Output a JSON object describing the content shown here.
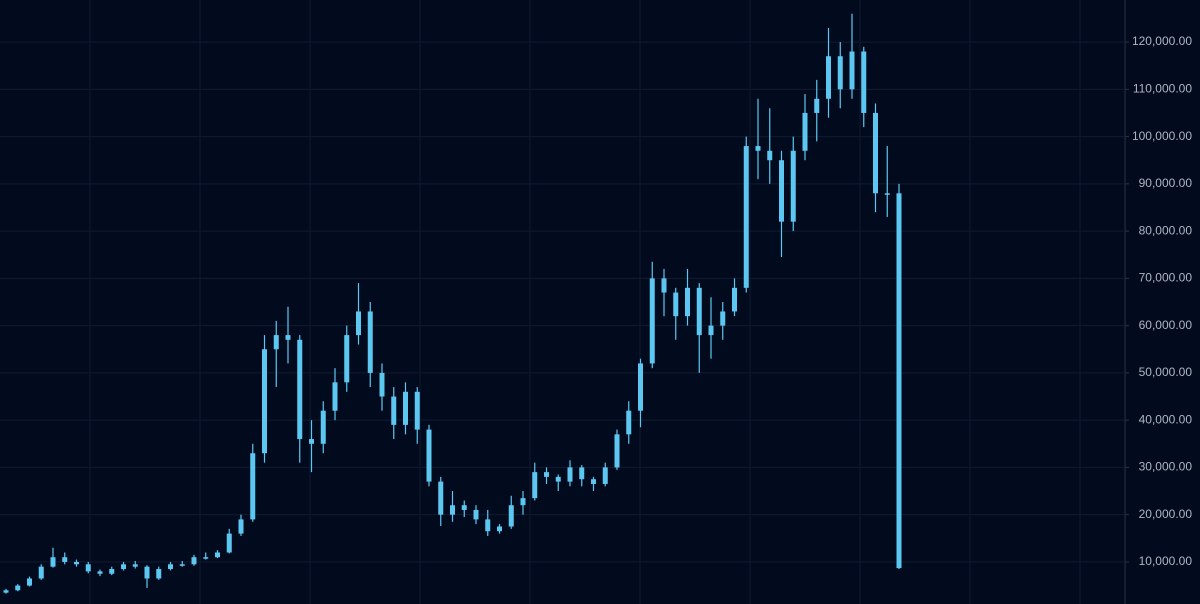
{
  "chart_data": {
    "type": "candlestick",
    "color": "#5cc8f2",
    "ylim": [
      1100,
      128900
    ],
    "yticks": [
      {
        "value": 10000,
        "label": "10,000.00"
      },
      {
        "value": 20000,
        "label": "20,000.00"
      },
      {
        "value": 30000,
        "label": "30,000.00"
      },
      {
        "value": 40000,
        "label": "40,000.00"
      },
      {
        "value": 50000,
        "label": "50,000.00"
      },
      {
        "value": 60000,
        "label": "60,000.00"
      },
      {
        "value": 70000,
        "label": "70,000.00"
      },
      {
        "value": 80000,
        "label": "80,000.00"
      },
      {
        "value": 90000,
        "label": "90,000.00"
      },
      {
        "value": 100000,
        "label": "100,000.00"
      },
      {
        "value": 110000,
        "label": "110,000.00"
      },
      {
        "value": 120000,
        "label": "120,000.00"
      }
    ],
    "grid": true,
    "open": [
      3500,
      4000,
      5000,
      6500,
      9000,
      11000,
      10000,
      9500,
      8000,
      7500,
      8500,
      9500,
      9000,
      6500,
      8500,
      9500,
      9500,
      11000,
      11000,
      12000,
      16000,
      19000,
      33000,
      55000,
      58000,
      57000,
      36000,
      35000,
      42000,
      48000,
      58000,
      63000,
      50000,
      45000,
      39000,
      46000,
      38000,
      27000,
      20000,
      22000,
      21000,
      19000,
      16500,
      17500,
      22000,
      23500,
      29000,
      28000,
      27000,
      30000,
      27500,
      26500,
      30000,
      37000,
      42000,
      52000,
      70000,
      67000,
      62000,
      68000,
      58000,
      60000,
      63000,
      68000,
      98000,
      97000,
      95000,
      82000,
      97000,
      105000,
      108000,
      117000,
      110000,
      118000,
      105000,
      88000,
      88000
    ],
    "high": [
      4300,
      5300,
      6900,
      9500,
      13000,
      12000,
      10500,
      10000,
      8400,
      9000,
      10000,
      10200,
      9300,
      9000,
      10000,
      10200,
      11500,
      12000,
      12500,
      17000,
      20000,
      35000,
      58000,
      61000,
      64000,
      58000,
      40000,
      44000,
      51000,
      60000,
      69000,
      65000,
      52000,
      47000,
      48000,
      47000,
      39000,
      28000,
      25000,
      23000,
      22000,
      21000,
      18000,
      24000,
      25000,
      31000,
      30000,
      28500,
      31500,
      30500,
      28000,
      31000,
      38000,
      44000,
      53000,
      73500,
      72000,
      68000,
      72000,
      69000,
      66000,
      65000,
      70000,
      100000,
      108000,
      106000,
      97000,
      100000,
      109000,
      112000,
      123000,
      120000,
      126000,
      119000,
      107000,
      98000,
      90000
    ],
    "low": [
      3300,
      3800,
      4800,
      6200,
      8800,
      9500,
      9000,
      7600,
      7000,
      7200,
      8200,
      8600,
      4500,
      6200,
      8200,
      9000,
      9200,
      10500,
      10800,
      11800,
      15500,
      18500,
      31000,
      47000,
      52000,
      31000,
      29000,
      33000,
      40000,
      46000,
      56000,
      47000,
      42000,
      36000,
      37000,
      35000,
      26000,
      17600,
      18500,
      19500,
      18000,
      15500,
      16000,
      17000,
      20000,
      23000,
      26500,
      25000,
      26000,
      26000,
      25000,
      26000,
      29500,
      35000,
      38500,
      51000,
      62000,
      57000,
      60000,
      50000,
      53000,
      57000,
      62000,
      67000,
      91000,
      90000,
      74500,
      80000,
      95000,
      99000,
      104000,
      106000,
      108000,
      102000,
      84000,
      83000,
      8500
    ],
    "close": [
      4000,
      5000,
      6500,
      9000,
      11000,
      10000,
      9500,
      8000,
      7500,
      8500,
      9500,
      9000,
      6500,
      8500,
      9500,
      9500,
      11000,
      11000,
      12000,
      16000,
      19000,
      33000,
      55000,
      58000,
      57000,
      36000,
      35000,
      42000,
      48000,
      58000,
      63000,
      50000,
      45000,
      39000,
      46000,
      38000,
      27000,
      20000,
      22000,
      21000,
      19000,
      16500,
      17500,
      22000,
      23500,
      29000,
      28000,
      27000,
      30000,
      27500,
      26500,
      30000,
      37000,
      42000,
      52000,
      70000,
      67000,
      62000,
      68000,
      58000,
      60000,
      63000,
      68000,
      98000,
      97000,
      95000,
      82000,
      97000,
      105000,
      108000,
      117000,
      110000,
      118000,
      105000,
      88000,
      88000,
      8700
    ]
  }
}
